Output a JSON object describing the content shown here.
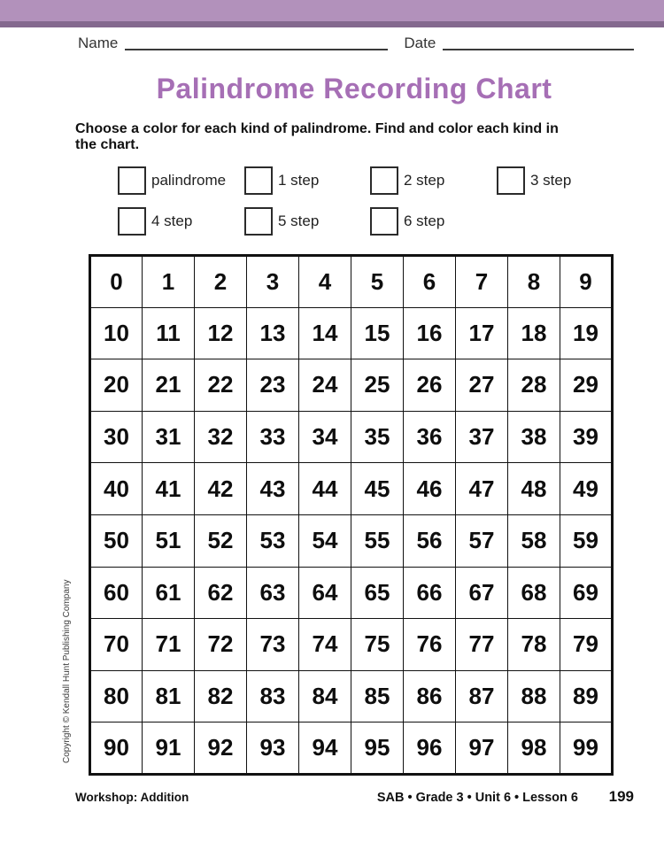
{
  "header": {
    "name_label": "Name",
    "date_label": "Date",
    "title": "Palindrome Recording Chart"
  },
  "instructions": {
    "line1": "Choose a color for each kind of palindrome. Find and color each kind in",
    "line2": "the chart."
  },
  "legend": {
    "items": [
      {
        "label": "palindrome"
      },
      {
        "label": "1 step"
      },
      {
        "label": "2 step"
      },
      {
        "label": "3 step"
      },
      {
        "label": "4 step"
      },
      {
        "label": "5 step"
      },
      {
        "label": "6 step"
      }
    ]
  },
  "chart_data": {
    "type": "table",
    "title": "Palindrome Recording Chart",
    "rows": 10,
    "cols": 10,
    "values": [
      [
        0,
        1,
        2,
        3,
        4,
        5,
        6,
        7,
        8,
        9
      ],
      [
        10,
        11,
        12,
        13,
        14,
        15,
        16,
        17,
        18,
        19
      ],
      [
        20,
        21,
        22,
        23,
        24,
        25,
        26,
        27,
        28,
        29
      ],
      [
        30,
        31,
        32,
        33,
        34,
        35,
        36,
        37,
        38,
        39
      ],
      [
        40,
        41,
        42,
        43,
        44,
        45,
        46,
        47,
        48,
        49
      ],
      [
        50,
        51,
        52,
        53,
        54,
        55,
        56,
        57,
        58,
        59
      ],
      [
        60,
        61,
        62,
        63,
        64,
        65,
        66,
        67,
        68,
        69
      ],
      [
        70,
        71,
        72,
        73,
        74,
        75,
        76,
        77,
        78,
        79
      ],
      [
        80,
        81,
        82,
        83,
        84,
        85,
        86,
        87,
        88,
        89
      ],
      [
        90,
        91,
        92,
        93,
        94,
        95,
        96,
        97,
        98,
        99
      ]
    ]
  },
  "sidebar": {
    "copyright": "Copyright © Kendall Hunt Publishing Company"
  },
  "footer": {
    "left": "Workshop: Addition",
    "center": "SAB • Grade 3 • Unit 6 • Lesson 6",
    "page_number": "199"
  },
  "colors": {
    "band_purple": "#b291bb",
    "band_edge_purple": "#84698e",
    "title_purple": "#a66fb5"
  }
}
